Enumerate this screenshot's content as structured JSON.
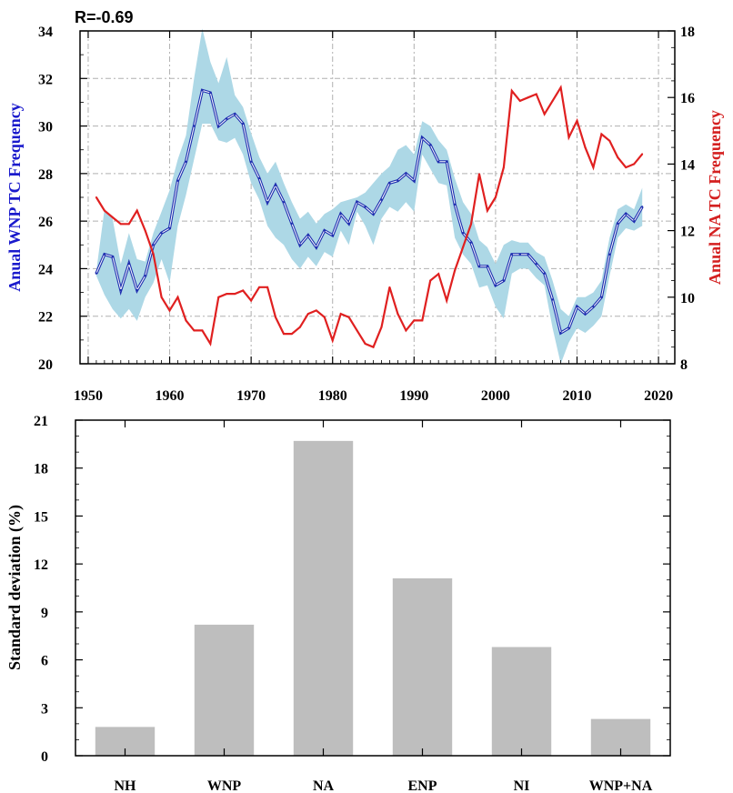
{
  "chart_data": [
    {
      "type": "line",
      "annotation": "R=-0.69",
      "xlabel": "",
      "ylabel_left": "Anual WNP TC Frequency",
      "ylabel_right": "Anual NA TC Frequency",
      "xlim": [
        1949,
        2022
      ],
      "ylim_left": [
        20,
        34
      ],
      "ylim_right": [
        8,
        18
      ],
      "x_ticks": [
        1950,
        1960,
        1970,
        1980,
        1990,
        2000,
        2010,
        2020
      ],
      "y_ticks_left": [
        20,
        22,
        24,
        26,
        28,
        30,
        32,
        34
      ],
      "y_ticks_right": [
        8,
        10,
        12,
        14,
        16,
        18
      ],
      "grid": true,
      "colors": {
        "wnp": "#0000c8",
        "wnp_band": "#add8e6",
        "na": "#e02020"
      },
      "x": [
        1951,
        1952,
        1953,
        1954,
        1955,
        1956,
        1957,
        1958,
        1959,
        1960,
        1961,
        1962,
        1963,
        1964,
        1965,
        1966,
        1967,
        1968,
        1969,
        1970,
        1971,
        1972,
        1973,
        1974,
        1975,
        1976,
        1977,
        1978,
        1979,
        1980,
        1981,
        1982,
        1983,
        1984,
        1985,
        1986,
        1987,
        1988,
        1989,
        1990,
        1991,
        1992,
        1993,
        1994,
        1995,
        1996,
        1997,
        1998,
        1999,
        2000,
        2001,
        2002,
        2003,
        2004,
        2005,
        2006,
        2007,
        2008,
        2009,
        2010,
        2011,
        2012,
        2013,
        2014,
        2015,
        2016,
        2017,
        2018
      ],
      "series": [
        {
          "axis": "left",
          "values": [
            23.8,
            24.6,
            24.5,
            23.1,
            24.2,
            23.1,
            23.7,
            25.0,
            25.5,
            25.7,
            27.7,
            28.5,
            30.0,
            31.5,
            31.4,
            30.0,
            30.3,
            30.5,
            30.1,
            28.5,
            27.8,
            26.8,
            27.5,
            26.8,
            25.9,
            25.0,
            25.4,
            24.9,
            25.6,
            25.4,
            26.3,
            25.9,
            26.8,
            26.6,
            26.3,
            26.9,
            27.6,
            27.7,
            28.0,
            27.7,
            29.5,
            29.2,
            28.5,
            28.5,
            26.7,
            25.5,
            25.1,
            24.1,
            24.1,
            23.3,
            23.5,
            24.6,
            24.6,
            24.6,
            24.2,
            23.8,
            22.7,
            21.3,
            21.5,
            22.4,
            22.1,
            22.4,
            22.8,
            24.6,
            25.9,
            26.3,
            26.0,
            26.6
          ]
        },
        {
          "axis": "left",
          "band": true,
          "upper": [
            23.9,
            26.5,
            26.1,
            24.2,
            25.5,
            24.4,
            24.3,
            25.5,
            26.4,
            27.3,
            28.6,
            29.6,
            32.0,
            34.1,
            32.7,
            31.8,
            32.9,
            31.3,
            30.8,
            29.7,
            28.7,
            28.0,
            28.5,
            27.6,
            26.8,
            26.1,
            26.4,
            25.9,
            26.3,
            26.5,
            26.8,
            26.9,
            27.0,
            27.2,
            27.6,
            28.0,
            28.3,
            29.0,
            29.2,
            28.8,
            30.2,
            30.0,
            29.4,
            29.0,
            27.8,
            26.8,
            26.3,
            25.2,
            24.9,
            24.2,
            25.0,
            25.2,
            25.1,
            25.1,
            24.7,
            24.5,
            23.5,
            22.3,
            22.0,
            22.8,
            22.8,
            23.0,
            23.5,
            25.3,
            26.5,
            26.7,
            26.5,
            27.4
          ]
        },
        {
          "axis": "left",
          "band": true,
          "lower": [
            23.7,
            22.9,
            22.3,
            21.9,
            22.3,
            21.8,
            22.8,
            23.4,
            24.4,
            23.4,
            25.8,
            27.1,
            28.6,
            30.1,
            30.1,
            29.4,
            29.3,
            29.5,
            28.8,
            27.6,
            26.9,
            25.8,
            25.3,
            25.0,
            24.4,
            24.0,
            24.5,
            24.1,
            24.7,
            24.5,
            25.6,
            25.0,
            26.4,
            25.8,
            25.0,
            26.1,
            26.6,
            26.4,
            26.8,
            26.4,
            28.8,
            28.2,
            27.6,
            27.5,
            25.3,
            24.6,
            24.2,
            23.2,
            23.3,
            22.4,
            21.9,
            23.8,
            24.0,
            24.0,
            23.6,
            23.3,
            21.5,
            20.0,
            20.9,
            21.5,
            21.3,
            21.6,
            22.0,
            23.7,
            25.3,
            25.7,
            25.6,
            25.8
          ]
        },
        {
          "axis": "right",
          "values": [
            13.0,
            12.6,
            12.4,
            12.2,
            12.2,
            12.6,
            12.0,
            11.3,
            10.0,
            9.6,
            10.0,
            9.3,
            9.0,
            9.0,
            8.6,
            10.0,
            10.1,
            10.1,
            10.2,
            9.9,
            10.3,
            10.3,
            9.4,
            8.9,
            8.9,
            9.1,
            9.5,
            9.6,
            9.4,
            8.7,
            9.5,
            9.4,
            9.0,
            8.6,
            8.5,
            9.1,
            10.3,
            9.5,
            9.0,
            9.3,
            9.3,
            10.5,
            10.7,
            9.9,
            10.8,
            11.5,
            12.2,
            13.7,
            12.6,
            13.0,
            13.9,
            16.2,
            15.9,
            16.0,
            16.1,
            15.5,
            15.9,
            16.3,
            14.8,
            15.3,
            14.5,
            13.9,
            14.9,
            14.7,
            14.2,
            13.9,
            14.0,
            14.3
          ]
        }
      ]
    },
    {
      "type": "bar",
      "title": "",
      "xlabel": "",
      "ylabel": "Standard deviation (%)",
      "ylim": [
        0,
        21
      ],
      "y_ticks": [
        0,
        3,
        6,
        9,
        12,
        15,
        18,
        21
      ],
      "categories": [
        "NH",
        "WNP",
        "NA",
        "ENP",
        "NI",
        "WNP+NA"
      ],
      "values": [
        1.8,
        8.2,
        19.7,
        11.1,
        6.8,
        2.3
      ],
      "colors": {
        "bar": "#bebebe"
      }
    }
  ]
}
